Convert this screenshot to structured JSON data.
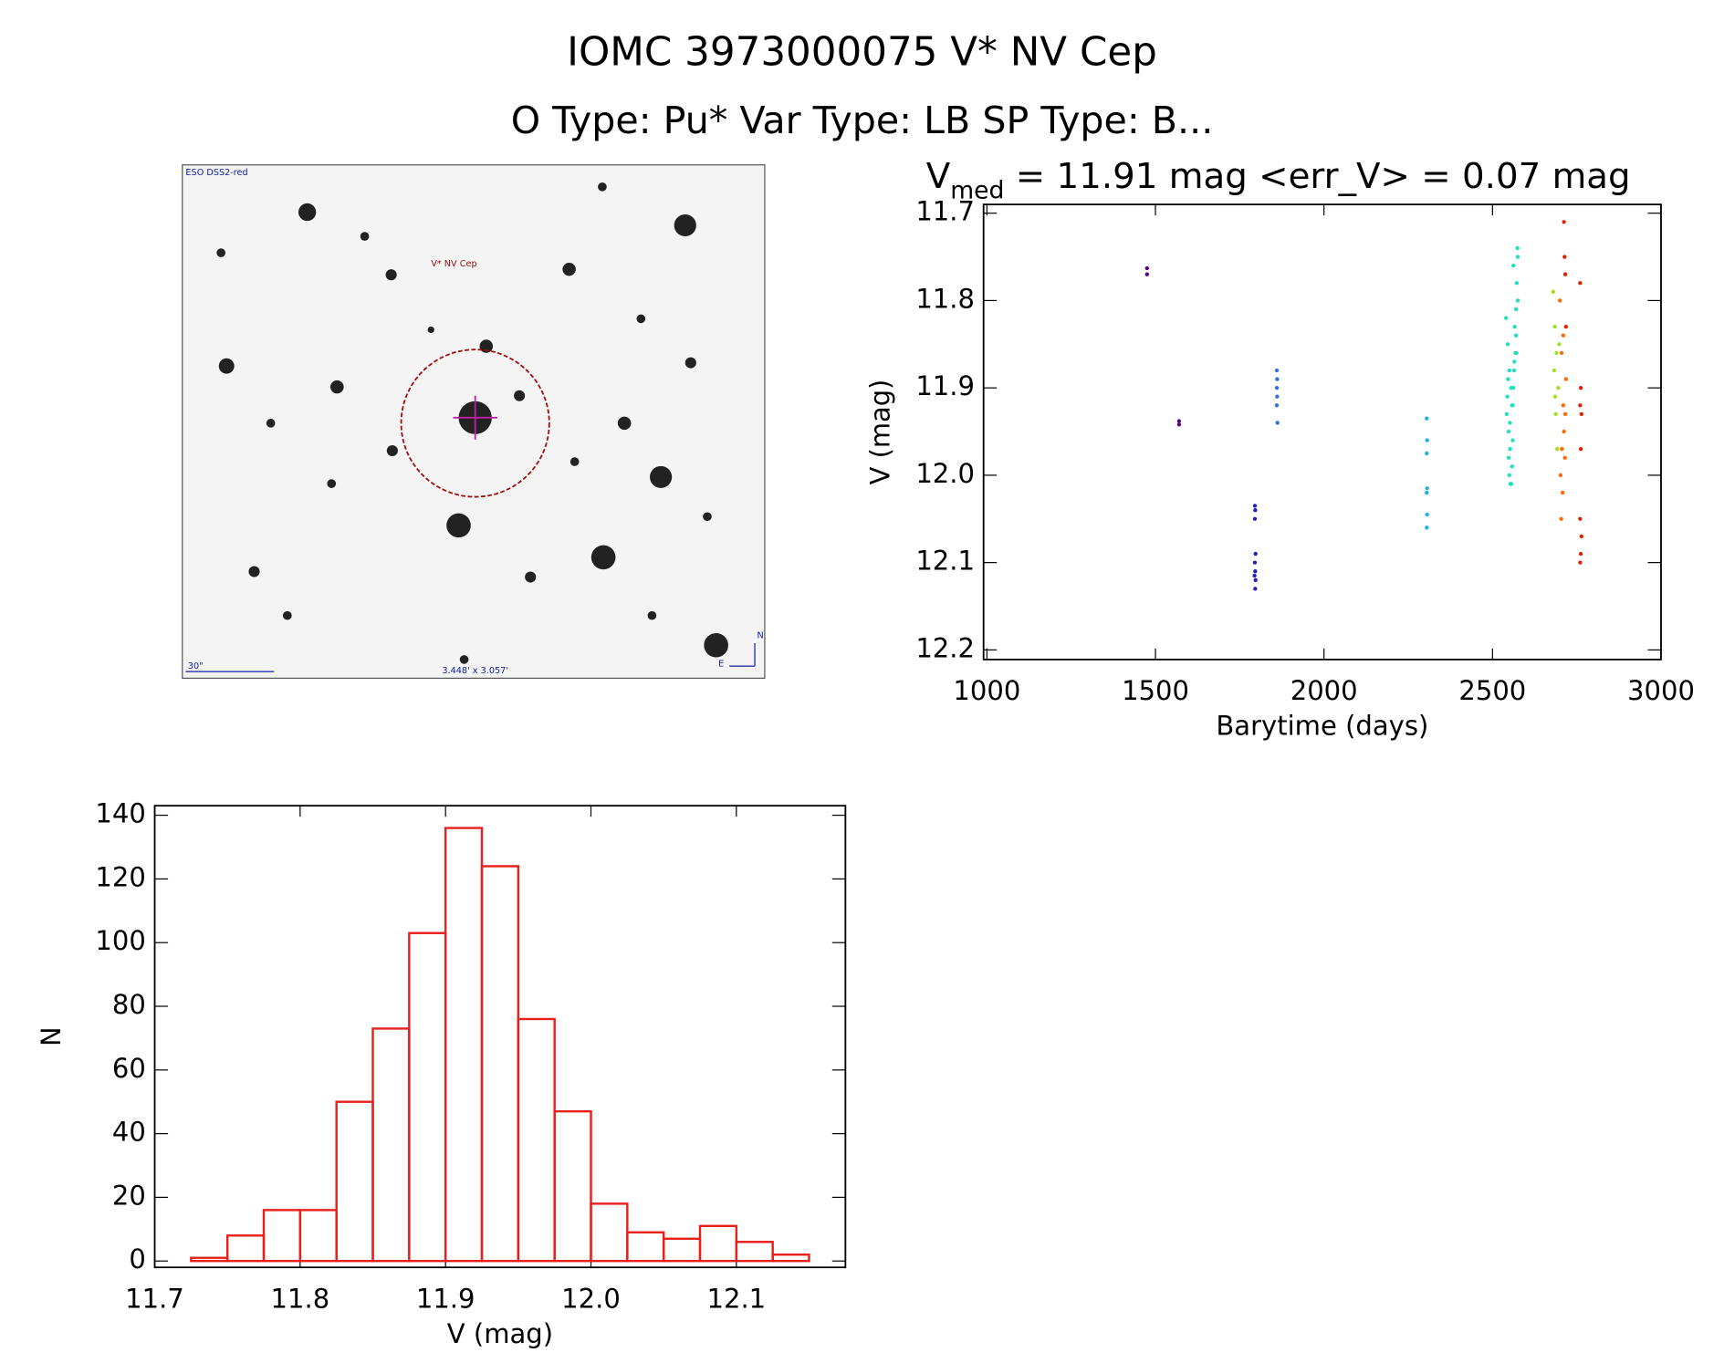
{
  "header": {
    "title": "IOMC 3973000075   V* NV Cep",
    "subtitle": "O Type: Pu*  Var Type: LB  SP Type: B..."
  },
  "image": {
    "survey": "ESO DSS2-red",
    "target": "V* NV Cep",
    "scale": "30\"",
    "field": "3.448' x 3.057'",
    "north": "N",
    "east": "E"
  },
  "chart_data": [
    {
      "type": "scatter",
      "title": {
        "main": "V",
        "subscript": "med",
        "rest": " = 11.91 mag <err_V> = 0.07 mag"
      },
      "x_label": "Barytime (days)",
      "y_label": "V (mag)",
      "xlim": [
        990,
        3000
      ],
      "xticks": [
        1000,
        1500,
        2000,
        2500,
        3000
      ],
      "ylim": [
        12.211,
        11.69
      ],
      "yticks": [
        11.7,
        11.8,
        11.9,
        {
          "value": 12,
          "label": "12.0"
        },
        12.1,
        12.2
      ],
      "series": [
        {
          "color": "#5a0080",
          "x": [
            1475,
            1475,
            1570,
            1570
          ],
          "values": [
            11.763,
            11.77,
            11.938,
            11.942
          ]
        },
        {
          "color": "#2020c0",
          "x": [
            1795,
            1796,
            1795,
            1797,
            1795,
            1796,
            1794,
            1797,
            1796
          ],
          "values": [
            12.035,
            12.04,
            12.05,
            12.09,
            12.1,
            12.11,
            12.115,
            12.12,
            12.13
          ]
        },
        {
          "color": "#3070e0",
          "x": [
            1860,
            1861,
            1860,
            1861,
            1860,
            1862
          ],
          "values": [
            11.88,
            11.89,
            11.9,
            11.91,
            11.92,
            11.94
          ]
        },
        {
          "color": "#20b0e0",
          "x": [
            2305,
            2306,
            2305,
            2306,
            2305,
            2306,
            2305
          ],
          "values": [
            11.935,
            11.96,
            11.975,
            12.015,
            12.02,
            12.045,
            12.06
          ]
        },
        {
          "color": "#20e0c0",
          "x": [
            2540,
            2545,
            2550,
            2555,
            2560,
            2565,
            2570,
            2575,
            2542,
            2548,
            2552,
            2558,
            2562,
            2568,
            2572,
            2544,
            2550,
            2556,
            2560,
            2566,
            2574,
            2546,
            2552,
            2558,
            2564,
            2570,
            2548,
            2554,
            2562,
            2553,
            2575,
            2571
          ],
          "values": [
            11.82,
            11.85,
            11.88,
            11.9,
            11.92,
            11.87,
            11.84,
            11.8,
            11.93,
            11.95,
            11.97,
            11.99,
            11.9,
            11.86,
            11.78,
            11.91,
            12.0,
            12.01,
            11.96,
            11.83,
            11.74,
            11.89,
            11.94,
            11.92,
            11.88,
            11.81,
            11.98,
            12.01,
            11.76,
            12.01,
            11.75,
            11.86
          ]
        },
        {
          "color": "#a0e020",
          "x": [
            2680,
            2685,
            2690,
            2695,
            2683,
            2688,
            2692,
            2698,
            2686
          ],
          "values": [
            11.79,
            11.83,
            11.86,
            11.9,
            11.88,
            11.93,
            11.97,
            11.85,
            11.91
          ]
        },
        {
          "color": "#ff6a00",
          "x": [
            2700,
            2705,
            2710,
            2715,
            2702,
            2708,
            2712,
            2718,
            2704,
            2710,
            2716,
            2706
          ],
          "values": [
            11.8,
            11.86,
            11.92,
            11.98,
            12.0,
            12.02,
            11.95,
            11.89,
            12.05,
            11.84,
            11.93,
            11.97
          ]
        },
        {
          "color": "#e02000",
          "x": [
            2712,
            2714,
            2716,
            2718,
            2760,
            2762,
            2760,
            2764,
            2762,
            2760,
            2764,
            2762,
            2760
          ],
          "values": [
            11.71,
            11.75,
            11.77,
            11.83,
            11.78,
            11.9,
            11.92,
            11.93,
            11.97,
            12.05,
            12.07,
            12.09,
            12.1
          ]
        }
      ]
    },
    {
      "type": "histogram",
      "x_label": "V (mag)",
      "y_label": "N",
      "color": "#e8201c",
      "xlim": [
        11.7,
        12.175
      ],
      "xticks": [
        11.7,
        11.8,
        11.9,
        {
          "value": 12,
          "label": "12.0"
        },
        12.1
      ],
      "ylim": [
        -2,
        143
      ],
      "yticks": [
        0,
        20,
        40,
        60,
        80,
        100,
        120,
        140
      ],
      "bins": [
        11.725,
        11.75,
        11.775,
        11.8,
        11.825,
        11.85,
        11.875,
        11.9,
        11.925,
        11.95,
        11.975,
        12.0,
        12.025,
        12.05,
        12.075,
        12.1,
        12.125,
        12.15
      ],
      "values": [
        1,
        8,
        16,
        16,
        50,
        73,
        103,
        136,
        124,
        76,
        47,
        18,
        9,
        7,
        11,
        6,
        2
      ]
    }
  ]
}
